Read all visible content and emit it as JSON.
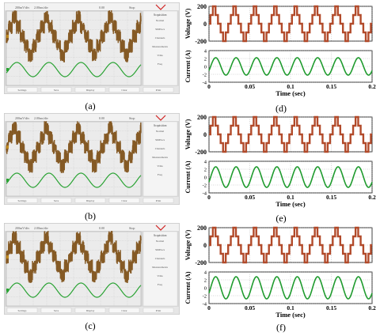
{
  "labels": [
    "(a)",
    "(b)",
    "(c)",
    "(d)",
    "(e)",
    "(f)"
  ],
  "scope": {
    "top_values": [
      "200mV/div",
      "2.00ms/div",
      "0.00",
      "Stop"
    ],
    "side_title": "Acquisition",
    "side_menu": [
      "Normal",
      "50MSa/s",
      "Channels",
      "Measurements",
      "Vrms",
      "Freq"
    ],
    "bottom_softkeys": [
      "Settings",
      "Save",
      "Display",
      "Clear",
      "Print"
    ],
    "colors": {
      "screen": "#ebebeb",
      "grid": "#b9b9b9",
      "voltage": "#7a4a0f",
      "current": "#2aa334",
      "frame": "#d9d9d9"
    }
  },
  "chart_data": [
    {
      "type": "line",
      "panel": "(d)",
      "x": {
        "label": "Time (sec)",
        "range": [
          0,
          0.2
        ],
        "ticks": [
          "0",
          "0.05",
          "0.1",
          "0.15",
          "0.2"
        ]
      },
      "voltage": {
        "ylabel": "Voltage (V)",
        "ylim": [
          -200,
          200
        ],
        "ticks": [
          "200",
          "0",
          "-200"
        ],
        "levels": [
          -200,
          -100,
          0,
          100,
          200
        ],
        "freq": 40,
        "color": "#b24a2a"
      },
      "current": {
        "ylabel": "Current (A)",
        "ylim": [
          -4,
          4
        ],
        "ticks": [
          "4",
          "2",
          "0",
          "-2",
          "-4"
        ],
        "amplitude": 2.2,
        "freq": 40,
        "color": "#1f9b2e"
      },
      "grid": true
    },
    {
      "type": "line",
      "panel": "(e)",
      "x": {
        "label": "Time (sec)",
        "range": [
          0,
          0.2
        ],
        "ticks": [
          "0",
          "0.05",
          "0.1",
          "0.15",
          "0.2"
        ]
      },
      "voltage": {
        "ylabel": "Voltage (V)",
        "ylim": [
          -200,
          200
        ],
        "ticks": [
          "200",
          "0",
          "-200"
        ],
        "levels": [
          -200,
          -100,
          0,
          100,
          200
        ],
        "freq": 40,
        "color": "#b24a2a"
      },
      "current": {
        "ylabel": "Current (A)",
        "ylim": [
          -4,
          4
        ],
        "ticks": [
          "4",
          "2",
          "0",
          "-2",
          "-4"
        ],
        "amplitude": 2.6,
        "freq": 40,
        "color": "#1f9b2e"
      },
      "grid": true
    },
    {
      "type": "line",
      "panel": "(f)",
      "x": {
        "label": "Time (sec)",
        "range": [
          0,
          0.2
        ],
        "ticks": [
          "0",
          "0.05",
          "0.1",
          "0.15",
          "0.2"
        ]
      },
      "voltage": {
        "ylabel": "Voltage (V)",
        "ylim": [
          -200,
          200
        ],
        "ticks": [
          "200",
          "0",
          "-200"
        ],
        "levels": [
          -200,
          -100,
          0,
          100,
          200
        ],
        "freq": 40,
        "color": "#b24a2a"
      },
      "current": {
        "ylabel": "Current (A)",
        "ylim": [
          -4,
          4
        ],
        "ticks": [
          "4",
          "2",
          "0",
          "-2",
          "-4"
        ],
        "amplitude": 2.8,
        "freq": 40,
        "color": "#1f9b2e"
      },
      "grid": true
    }
  ]
}
